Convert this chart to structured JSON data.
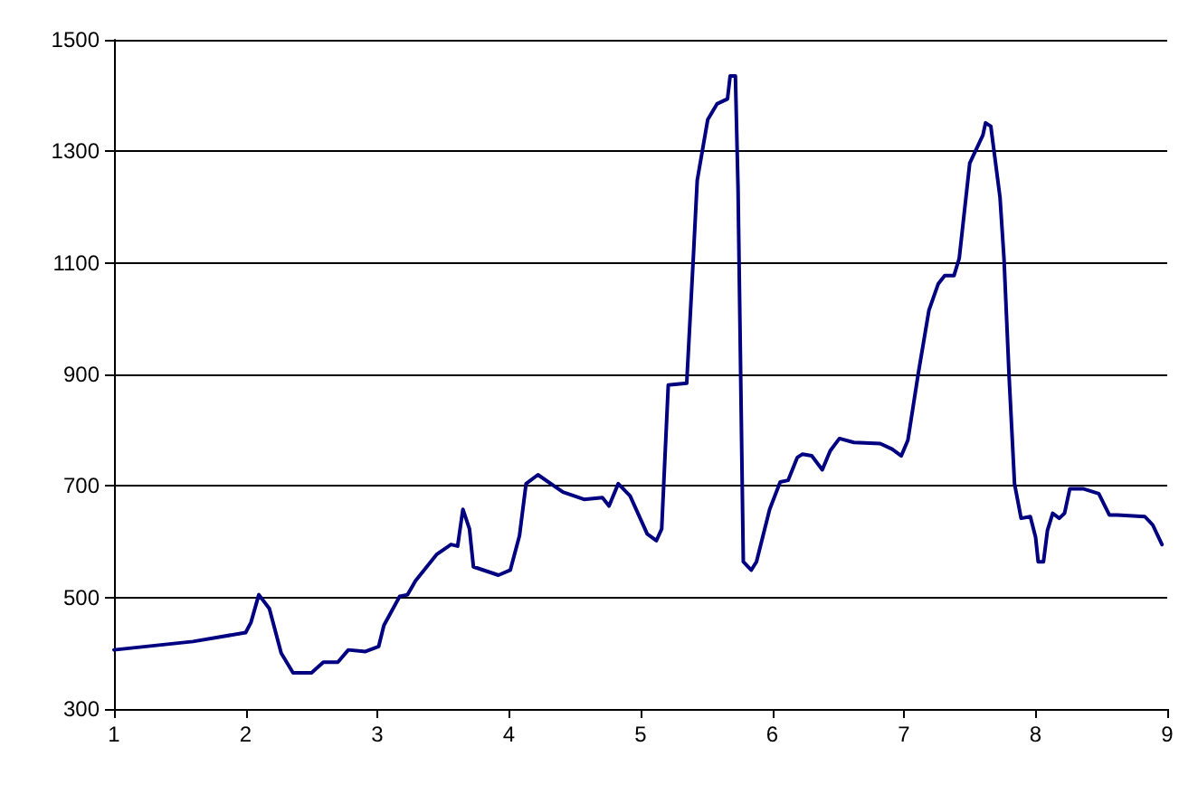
{
  "chart_data": {
    "type": "line",
    "xlim": [
      1,
      9
    ],
    "xticks": [
      1,
      2,
      3,
      4,
      5,
      6,
      7,
      8,
      9
    ],
    "ylim": [
      300,
      1500
    ],
    "yticks": [
      300,
      500,
      700,
      900,
      1100,
      1300,
      1500
    ],
    "grid": "y",
    "marker": "none",
    "line_style": "solid",
    "series": [
      {
        "color": "#000080",
        "x": [
          1,
          1.6,
          2,
          2.04,
          2.1,
          2.18,
          2.27,
          2.36,
          2.5,
          2.59,
          2.7,
          2.78,
          2.91,
          3.01,
          3.05,
          3.17,
          3.23,
          3.29,
          3.45,
          3.56,
          3.61,
          3.65,
          3.7,
          3.73,
          3.92,
          4.01,
          4.08,
          4.13,
          4.22,
          4.41,
          4.57,
          4.71,
          4.76,
          4.83,
          4.92,
          5.05,
          5.12,
          5.16,
          5.21,
          5.35,
          5.4,
          5.43,
          5.51,
          5.58,
          5.66,
          5.68,
          5.72,
          5.74,
          5.78,
          5.84,
          5.88,
          5.98,
          6.06,
          6.12,
          6.19,
          6.23,
          6.3,
          6.38,
          6.44,
          6.51,
          6.62,
          6.82,
          6.91,
          6.98,
          7.03,
          7.11,
          7.19,
          7.26,
          7.31,
          7.38,
          7.42,
          7.5,
          7.6,
          7.62,
          7.66,
          7.73,
          7.76,
          7.8,
          7.84,
          7.89,
          7.96,
          8,
          8.02,
          8.06,
          8.09,
          8.13,
          8.18,
          8.22,
          8.26,
          8.36,
          8.48,
          8.56,
          8.62,
          8.83,
          8.89,
          8.96
        ],
        "values": [
          406,
          421,
          437,
          455,
          505,
          480,
          400,
          365,
          365,
          384,
          384,
          406,
          403,
          412,
          450,
          502,
          505,
          530,
          577,
          595,
          592,
          658,
          623,
          555,
          540,
          549,
          611,
          704,
          720,
          689,
          676,
          679,
          664,
          704,
          682,
          614,
          602,
          623,
          881,
          884,
          1108,
          1248,
          1357,
          1385,
          1394,
          1435,
          1435,
          1233,
          564,
          549,
          564,
          658,
          707,
          710,
          751,
          757,
          754,
          729,
          763,
          785,
          778,
          776,
          766,
          754,
          782,
          903,
          1015,
          1062,
          1077,
          1077,
          1108,
          1279,
          1329,
          1351,
          1345,
          1217,
          1108,
          891,
          704,
          642,
          645,
          608,
          564,
          564,
          620,
          651,
          642,
          651,
          695,
          695,
          686,
          648,
          648,
          645,
          630,
          595
        ]
      }
    ]
  }
}
